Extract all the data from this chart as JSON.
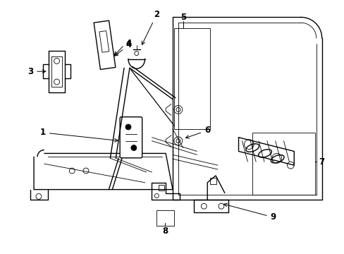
{
  "background_color": "#ffffff",
  "line_color": "#000000",
  "figsize": [
    4.89,
    3.6
  ],
  "dpi": 100,
  "label_fontsize": 8.5
}
